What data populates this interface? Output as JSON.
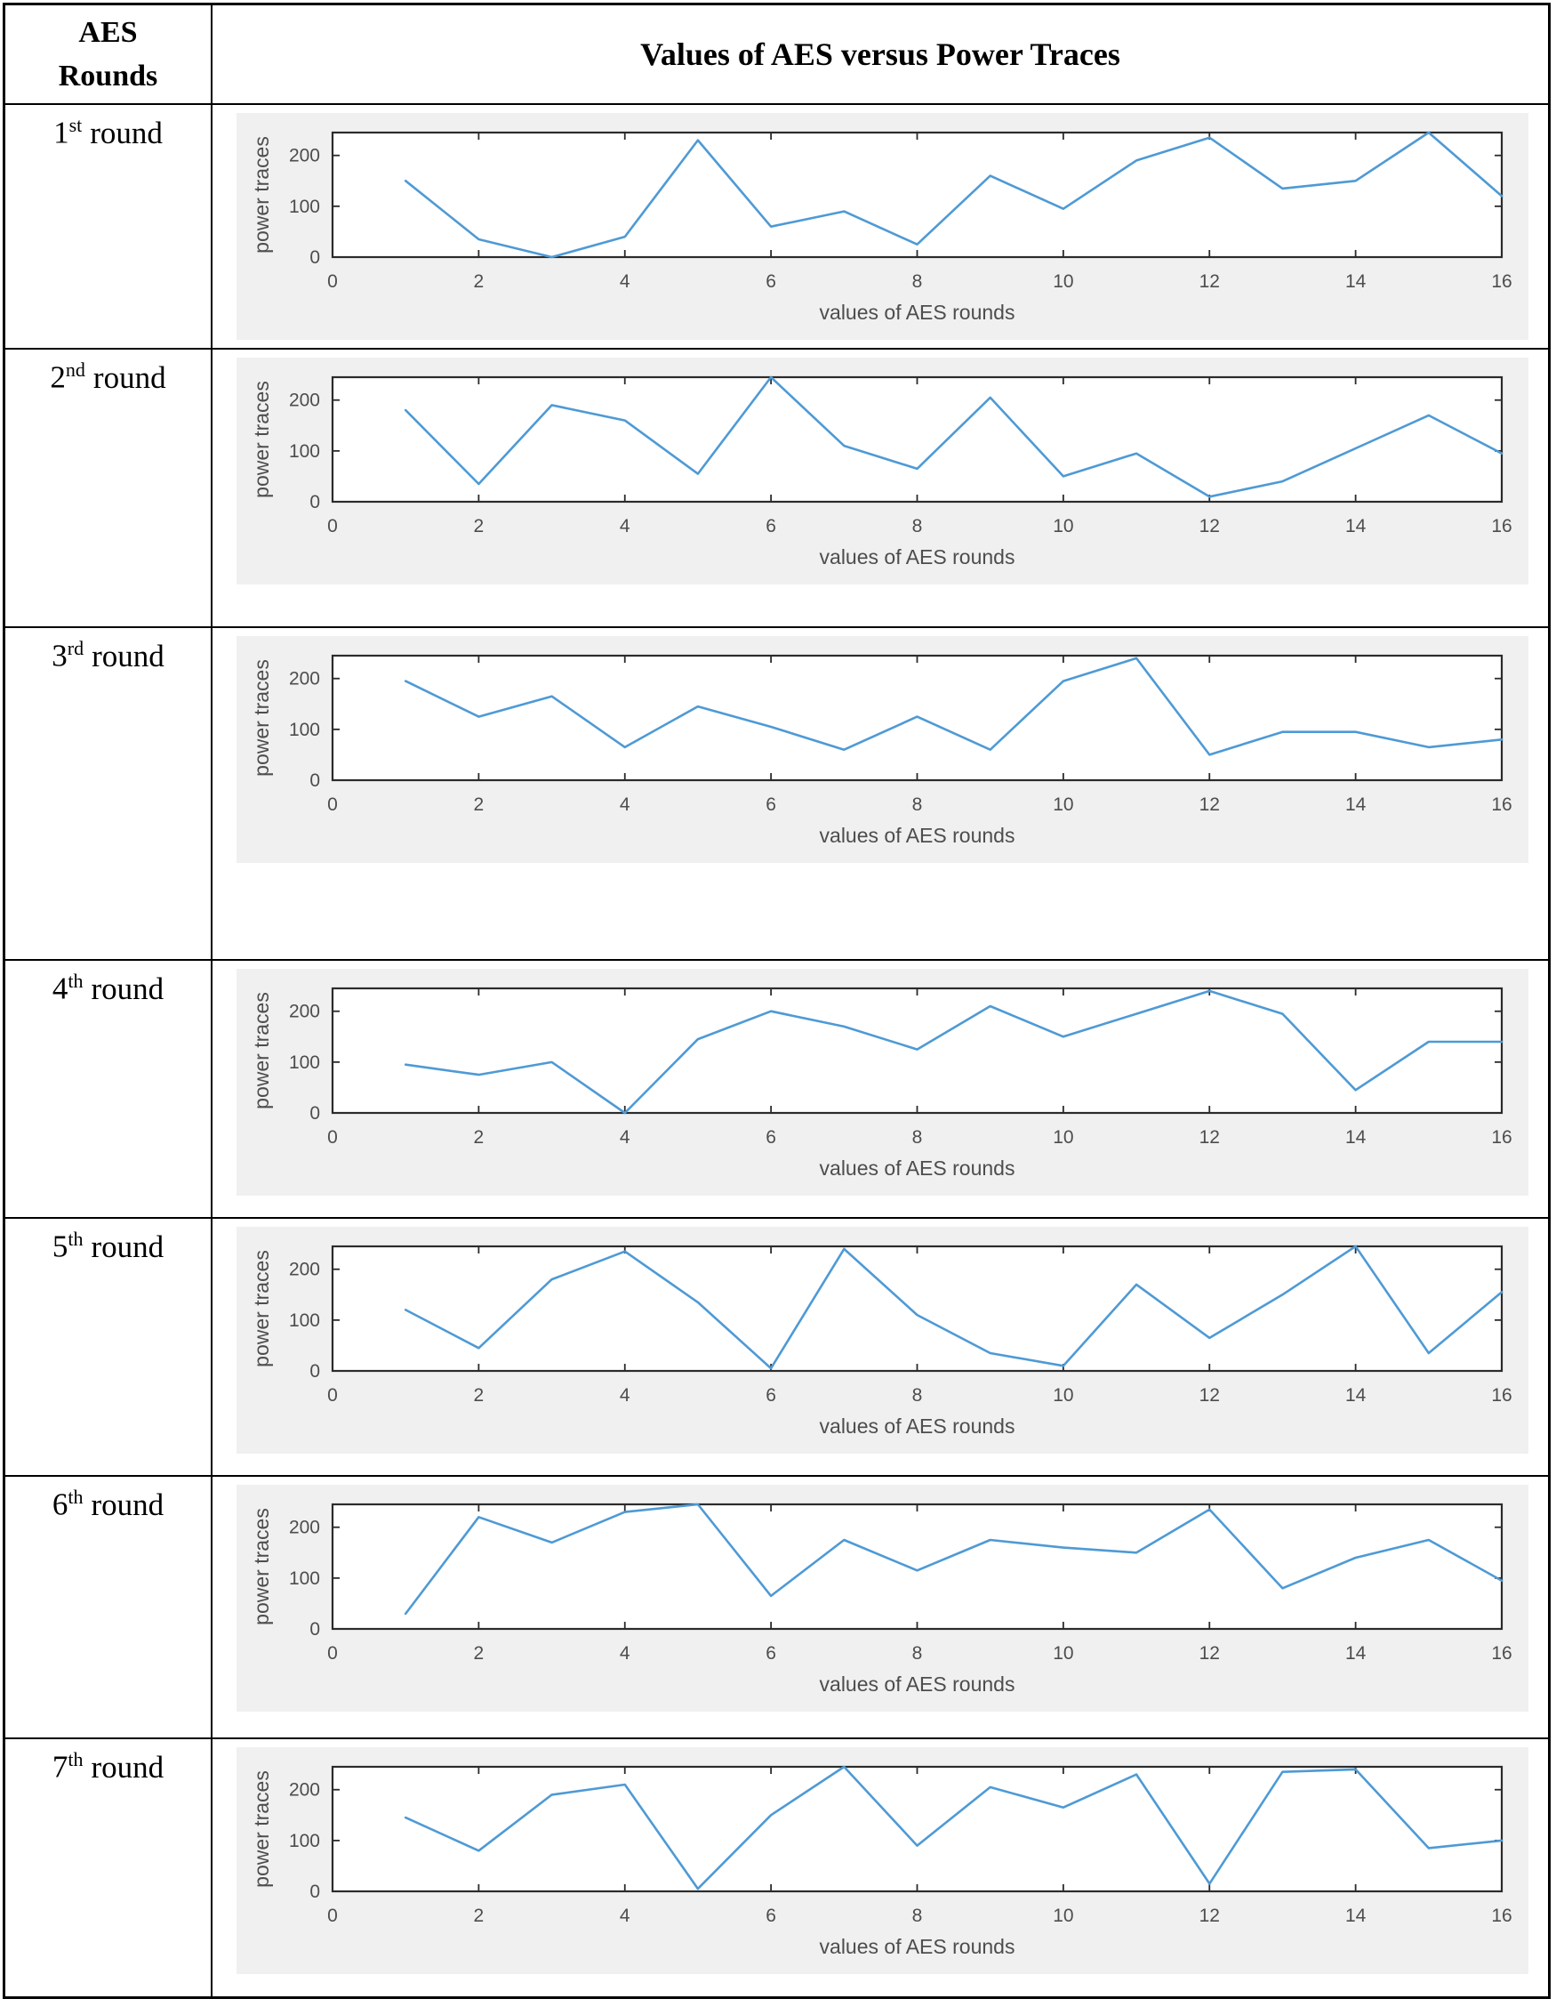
{
  "header": {
    "col1_line1": "AES",
    "col1_line2": "Rounds",
    "col2_title": "Values of AES versus Power Traces"
  },
  "rows": [
    {
      "label": {
        "num": "1",
        "sup": "st",
        "word": "round"
      }
    },
    {
      "label": {
        "num": "2",
        "sup": "nd",
        "word": "round"
      }
    },
    {
      "label": {
        "num": "3",
        "sup": "rd",
        "word": "round"
      }
    },
    {
      "label": {
        "num": "4",
        "sup": "th",
        "word": "round"
      }
    },
    {
      "label": {
        "num": "5",
        "sup": "th",
        "word": "round"
      }
    },
    {
      "label": {
        "num": "6",
        "sup": "th",
        "word": "round"
      }
    },
    {
      "label": {
        "num": "7",
        "sup": "th",
        "word": "round"
      }
    }
  ],
  "axis": {
    "xlabel": "values of AES rounds",
    "ylabel": "power traces",
    "xticks": [
      0,
      2,
      4,
      6,
      8,
      10,
      12,
      14,
      16
    ],
    "yticks": [
      0,
      100,
      200
    ]
  },
  "colors": {
    "line": "#4e9ad5",
    "panel_bg": "#f0f0f0",
    "plot_bg": "#ffffff",
    "axis": "#2b2b2b",
    "tick_text": "#4d4d4d"
  },
  "chart_data": [
    {
      "type": "line",
      "name": "1st round",
      "x": [
        1,
        2,
        3,
        4,
        5,
        6,
        7,
        8,
        9,
        10,
        11,
        12,
        13,
        14,
        15,
        16
      ],
      "values": [
        150,
        35,
        0,
        40,
        230,
        60,
        90,
        25,
        160,
        95,
        190,
        235,
        135,
        150,
        245,
        120
      ],
      "xlabel": "values of AES rounds",
      "ylabel": "power traces",
      "xlim": [
        0,
        16
      ],
      "ylim": [
        0,
        245
      ],
      "grid": false,
      "legend": false
    },
    {
      "type": "line",
      "name": "2nd round",
      "x": [
        1,
        2,
        3,
        4,
        5,
        6,
        7,
        8,
        9,
        10,
        11,
        12,
        13,
        14,
        15,
        16
      ],
      "values": [
        180,
        35,
        190,
        160,
        55,
        250,
        110,
        65,
        205,
        50,
        95,
        10,
        40,
        105,
        170,
        95
      ],
      "xlabel": "values of AES rounds",
      "ylabel": "power traces",
      "xlim": [
        0,
        16
      ],
      "ylim": [
        0,
        245
      ],
      "grid": false,
      "legend": false
    },
    {
      "type": "line",
      "name": "3rd round",
      "x": [
        1,
        2,
        3,
        4,
        5,
        6,
        7,
        8,
        9,
        10,
        11,
        12,
        13,
        14,
        15,
        16
      ],
      "values": [
        195,
        125,
        165,
        65,
        145,
        105,
        60,
        125,
        60,
        195,
        240,
        50,
        95,
        95,
        65,
        80
      ],
      "xlabel": "values of AES rounds",
      "ylabel": "power traces",
      "xlim": [
        0,
        16
      ],
      "ylim": [
        0,
        245
      ],
      "grid": false,
      "legend": false
    },
    {
      "type": "line",
      "name": "4th round",
      "x": [
        1,
        2,
        3,
        4,
        5,
        6,
        7,
        8,
        9,
        10,
        11,
        12,
        13,
        14,
        15,
        16
      ],
      "values": [
        95,
        75,
        100,
        0,
        145,
        200,
        170,
        125,
        210,
        150,
        195,
        240,
        195,
        45,
        140,
        140
      ],
      "xlabel": "values of AES rounds",
      "ylabel": "power traces",
      "xlim": [
        0,
        16
      ],
      "ylim": [
        0,
        245
      ],
      "grid": false,
      "legend": false
    },
    {
      "type": "line",
      "name": "5th round",
      "x": [
        1,
        2,
        3,
        4,
        5,
        6,
        7,
        8,
        9,
        10,
        11,
        12,
        13,
        14,
        15,
        16
      ],
      "values": [
        120,
        45,
        180,
        235,
        135,
        5,
        240,
        110,
        35,
        10,
        170,
        65,
        150,
        245,
        35,
        155
      ],
      "xlabel": "values of AES rounds",
      "ylabel": "power traces",
      "xlim": [
        0,
        16
      ],
      "ylim": [
        0,
        245
      ],
      "grid": false,
      "legend": false
    },
    {
      "type": "line",
      "name": "6th round",
      "x": [
        1,
        2,
        3,
        4,
        5,
        6,
        7,
        8,
        9,
        10,
        11,
        12,
        13,
        14,
        15,
        16
      ],
      "values": [
        30,
        220,
        170,
        230,
        245,
        65,
        175,
        115,
        175,
        160,
        150,
        235,
        80,
        140,
        175,
        95
      ],
      "xlabel": "values of AES rounds",
      "ylabel": "power traces",
      "xlim": [
        0,
        16
      ],
      "ylim": [
        0,
        245
      ],
      "grid": false,
      "legend": false
    },
    {
      "type": "line",
      "name": "7th round",
      "x": [
        1,
        2,
        3,
        4,
        5,
        6,
        7,
        8,
        9,
        10,
        11,
        12,
        13,
        14,
        15,
        16
      ],
      "values": [
        145,
        80,
        190,
        210,
        5,
        150,
        250,
        90,
        205,
        165,
        230,
        15,
        235,
        240,
        85,
        100
      ],
      "xlabel": "values of AES rounds",
      "ylabel": "power traces",
      "xlim": [
        0,
        16
      ],
      "ylim": [
        0,
        245
      ],
      "grid": false,
      "legend": false
    }
  ]
}
